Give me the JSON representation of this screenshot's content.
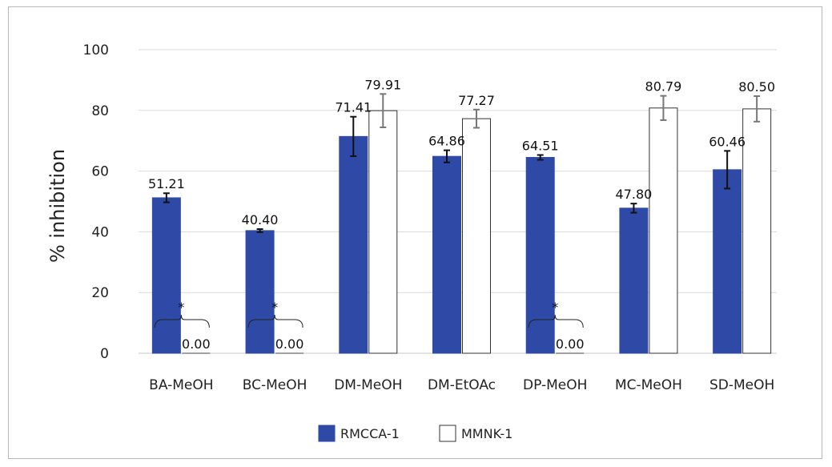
{
  "chart_data": {
    "type": "bar",
    "title": "",
    "xlabel": "",
    "ylabel": "% inhibition",
    "ylim": [
      0,
      100
    ],
    "yticks": [
      0,
      20,
      40,
      60,
      80,
      100
    ],
    "grid": true,
    "legend_position": "bottom",
    "categories": [
      "BA-MeOH",
      "BC-MeOH",
      "DM-MeOH",
      "DM-EtOAc",
      "DP-MeOH",
      "MC-MeOH",
      "SD-MeOH"
    ],
    "series": [
      {
        "name": "RMCCA-1",
        "color": "#2e4aa6",
        "values": [
          51.21,
          40.4,
          71.41,
          64.86,
          64.51,
          47.8,
          60.46
        ],
        "labels": [
          "51.21",
          "40.40",
          "71.41",
          "64.86",
          "64.51",
          "47.80",
          "60.46"
        ],
        "errors": [
          1.5,
          0.5,
          6.5,
          2.0,
          0.8,
          1.5,
          6.2
        ]
      },
      {
        "name": "MMNK-1",
        "color": "#ffffff",
        "values": [
          0.0,
          0.0,
          79.91,
          77.27,
          0.0,
          80.79,
          80.5
        ],
        "labels": [
          "0.00",
          "0.00",
          "79.91",
          "77.27",
          "0.00",
          "80.79",
          "80.50"
        ],
        "errors": [
          0,
          0,
          5.5,
          3.0,
          0,
          4.0,
          4.2
        ]
      }
    ],
    "significance": [
      {
        "category": "BA-MeOH",
        "marker": "*"
      },
      {
        "category": "BC-MeOH",
        "marker": "*"
      },
      {
        "category": "DP-MeOH",
        "marker": "*"
      }
    ]
  }
}
